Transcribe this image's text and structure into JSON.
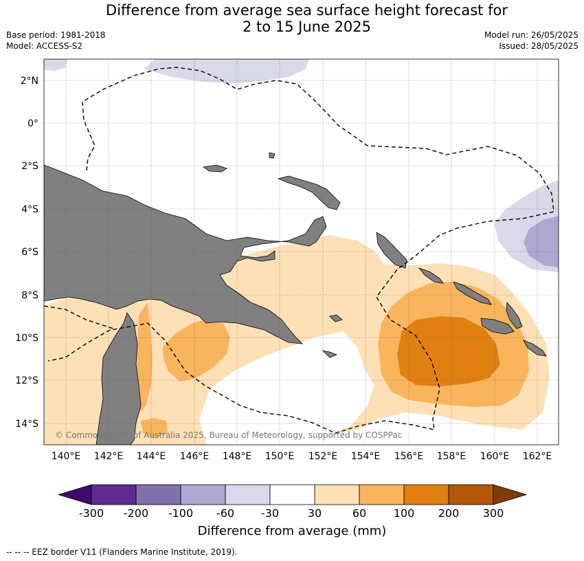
{
  "title_line1": "Difference from average sea surface height forecast for",
  "title_line2": "2 to 15 June 2025",
  "base_period": "Base period: 1981-2018",
  "model": "Model: ACCESS-S2",
  "model_run": "Model run: 26/05/2025",
  "issued": "Issued: 28/05/2025",
  "lat_labels": [
    "2°N",
    "0°",
    "2°S",
    "4°S",
    "6°S",
    "8°S",
    "10°S",
    "12°S",
    "14°S"
  ],
  "lon_labels": [
    "140°E",
    "142°E",
    "144°E",
    "146°E",
    "148°E",
    "150°E",
    "152°E",
    "154°E",
    "156°E",
    "158°E",
    "160°E",
    "162°E"
  ],
  "copyright": "© Commonwealth of Australia 2025, Bureau of Meteorology, supported by COSPPac",
  "colorbar": {
    "label": "Difference from average (mm)",
    "ticks": [
      "-300",
      "-200",
      "-100",
      "-60",
      "-30",
      "30",
      "60",
      "100",
      "200",
      "300"
    ],
    "colors": [
      "#3f0a6b",
      "#5e2a8e",
      "#8070ac",
      "#ada7d2",
      "#d9d9e9",
      "#ffffff",
      "#fde0b6",
      "#f9b55d",
      "#e08010",
      "#b35806",
      "#7f3b08"
    ]
  },
  "legend_line": "--  --  -- EEZ border V11 (Flanders Marine Institute, 2019)."
}
